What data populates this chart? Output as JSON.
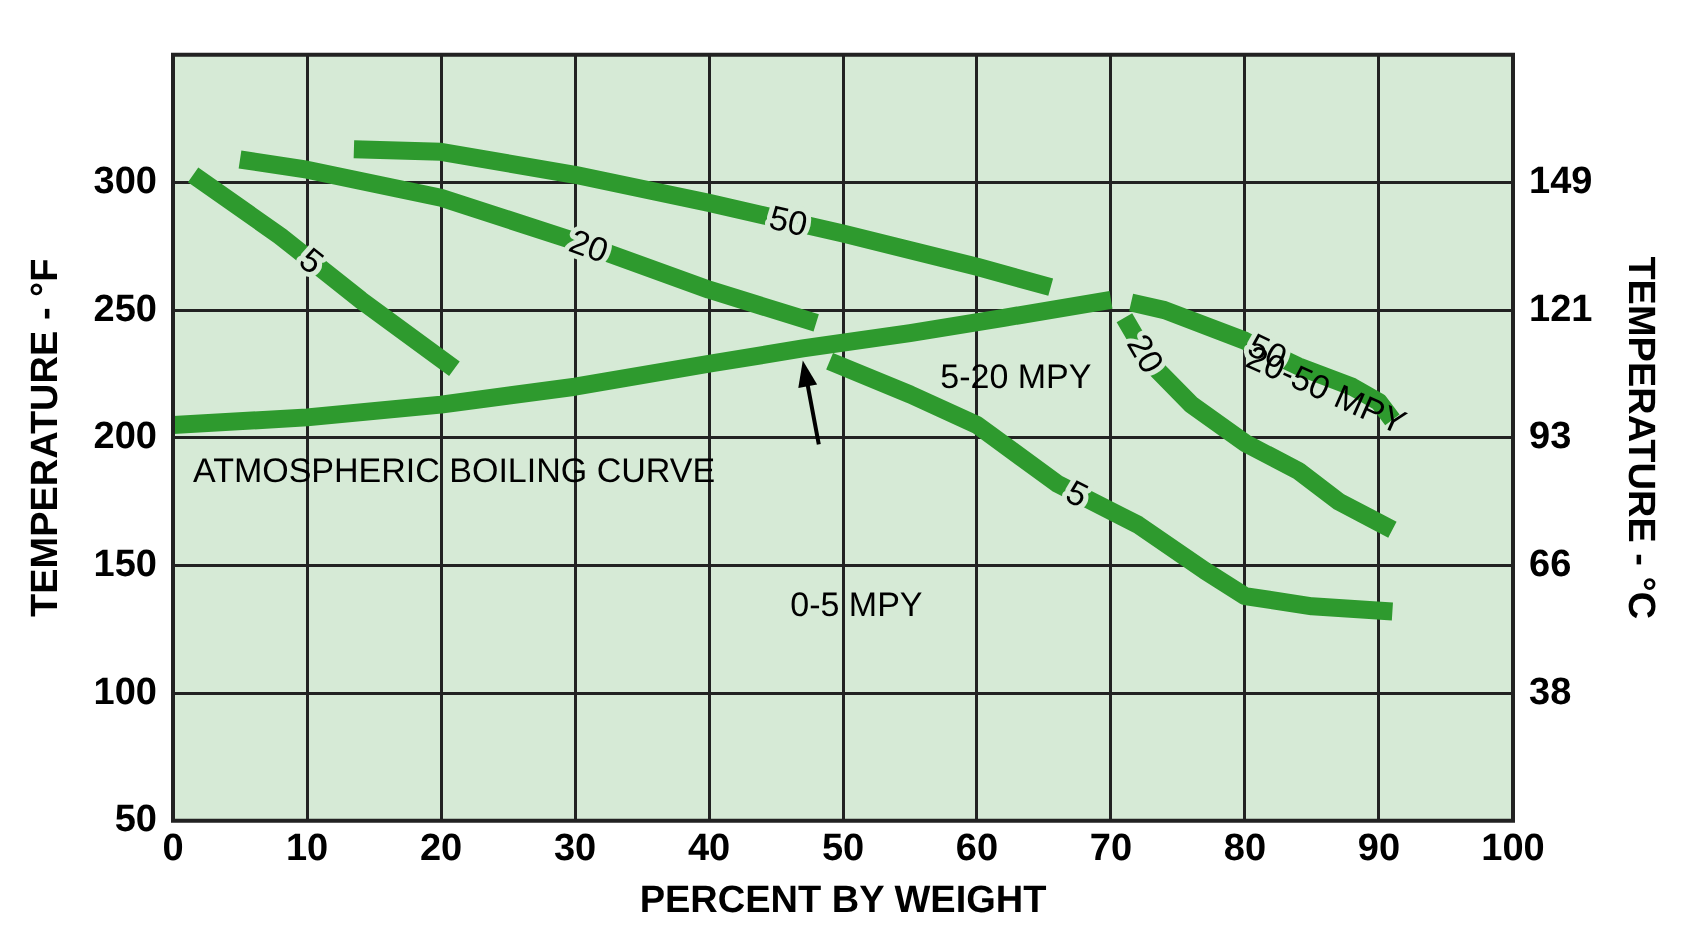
{
  "chart_data": {
    "type": "line",
    "xlabel": "PERCENT BY WEIGHT",
    "ylabel": "TEMPERATURE - °F",
    "y2label": "TEMPERATURE - °C",
    "xlim": [
      0,
      100
    ],
    "xticks": [
      0,
      10,
      20,
      30,
      40,
      50,
      60,
      70,
      80,
      90,
      100
    ],
    "ylim": [
      50,
      350
    ],
    "yticks": [
      50,
      100,
      150,
      200,
      250,
      300
    ],
    "y2lim": [
      10,
      176.67
    ],
    "y2ticks": [
      {
        "value": 37.8,
        "label": "38"
      },
      {
        "value": 65.6,
        "label": "66"
      },
      {
        "value": 93.3,
        "label": "93"
      },
      {
        "value": 121.1,
        "label": "121"
      },
      {
        "value": 148.9,
        "label": "149"
      }
    ],
    "grid": true,
    "legend": false,
    "marker": "none",
    "line_style": "solid",
    "series": [
      {
        "name": "ATMOSPHERIC BOILING CURVE",
        "color": "#2e9a2e",
        "x": [
          0,
          10,
          20,
          30,
          40,
          47,
          55,
          62,
          70
        ],
        "values": [
          205,
          208,
          213,
          220,
          229,
          235,
          241,
          247,
          254
        ]
      },
      {
        "name": "5",
        "color": "#2e9a2e",
        "x": [
          1.5,
          8,
          14,
          21
        ],
        "values": [
          303,
          279,
          254,
          227
        ]
      },
      {
        "name": "20",
        "color": "#2e9a2e",
        "x": [
          5,
          10,
          20,
          30,
          40,
          48
        ],
        "values": [
          309,
          305,
          294,
          277,
          258,
          245
        ]
      },
      {
        "name": "50",
        "color": "#2e9a2e",
        "x": [
          13.5,
          20,
          30,
          40,
          50,
          60,
          65.5
        ],
        "values": [
          313,
          312,
          303,
          292,
          280,
          267,
          259
        ]
      },
      {
        "name": "5",
        "color": "#2e9a2e",
        "x": [
          49,
          55,
          60,
          66,
          72,
          77,
          80,
          85,
          91
        ],
        "values": [
          230,
          217,
          205,
          182,
          166,
          148,
          138,
          134,
          132
        ]
      },
      {
        "name": "20",
        "color": "#2e9a2e",
        "x": [
          71,
          73,
          76,
          80,
          84,
          87,
          91
        ],
        "values": [
          247,
          229,
          213,
          198,
          187,
          175,
          164
        ]
      },
      {
        "name": "50",
        "color": "#2e9a2e",
        "x": [
          71.5,
          74,
          80,
          84,
          88,
          90,
          91
        ],
        "values": [
          253,
          250,
          238,
          228,
          220,
          214,
          207
        ]
      }
    ],
    "annotations": [
      "5-20 MPY",
      "0-5 MPY",
      "20-50 MPY"
    ]
  }
}
